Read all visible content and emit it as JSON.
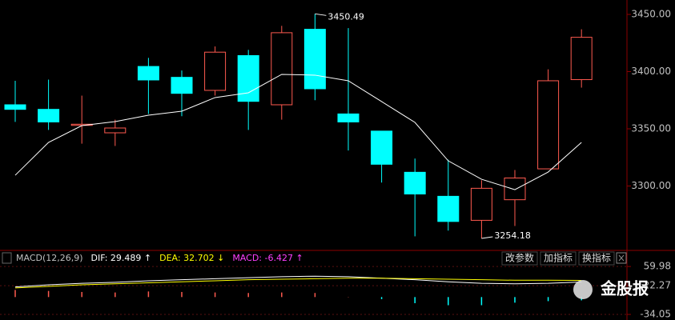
{
  "chart_data": [
    {
      "type": "candlestick",
      "open": [
        3371,
        3367,
        3353,
        3346.5,
        3404.5,
        3395,
        3383.6,
        3414,
        3371,
        3437,
        3363,
        3348,
        3312,
        3291,
        3270,
        3288,
        3315,
        3393
      ],
      "close": [
        3367,
        3356,
        3354,
        3350.7,
        3392.7,
        3381,
        3417,
        3374,
        3434,
        3385,
        3356,
        3319,
        3293,
        3269,
        3298,
        3307,
        3392,
        3430
      ],
      "high": [
        3392,
        3393,
        3379,
        3358,
        3412,
        3401,
        3422,
        3419,
        3440,
        3450.49,
        3438,
        3348,
        3324,
        3323,
        3305,
        3314,
        3402,
        3437
      ],
      "low": [
        3356,
        3349,
        3337,
        3335,
        3363,
        3361,
        3379,
        3349,
        3358,
        3375,
        3331,
        3303,
        3256,
        3261,
        3254.18,
        3265,
        3315,
        3386
      ],
      "up_color": "#ff5a4f",
      "down_color": "#00ffff",
      "ma": {
        "color": "#ffffff",
        "values": [
          3309.4,
          3338.1,
          3352.8,
          3356.3,
          3361.9,
          3365.4,
          3377.3,
          3381.5,
          3397.6,
          3396.9,
          3392,
          3373.8,
          3355.6,
          3322,
          3305.9,
          3296.8,
          3312.2,
          3338.1
        ]
      },
      "ylim": [
        3245.8,
        3462.6
      ],
      "yticks": [
        {
          "value": 3300,
          "label": "3300.00"
        },
        {
          "value": 3350,
          "label": "3350.00"
        },
        {
          "value": 3400,
          "label": "3400.00"
        },
        {
          "value": 3450,
          "label": "3450.00"
        }
      ]
    },
    {
      "type": "macd",
      "legend": [
        {
          "text": "MACD(12,26,9)",
          "color": "#c0c0c0"
        },
        {
          "text": "DIF: 29.489 ↑",
          "color": "#ffffff"
        },
        {
          "text": "DEA: 32.702 ↓",
          "color": "#ffff00"
        },
        {
          "text": "MACD: -6.427 ↑",
          "color": "#ff40ff"
        }
      ],
      "buttons": [
        "改参数",
        "加指标",
        "换指标"
      ],
      "series": [
        {
          "name": "DIF",
          "color": "#ffffff",
          "values": [
            20,
            24,
            27,
            29,
            32,
            34,
            36,
            38,
            40,
            41,
            40,
            37,
            34,
            30,
            27,
            26,
            27,
            29.489
          ]
        },
        {
          "name": "DEA",
          "color": "#ffff00",
          "values": [
            18,
            21,
            24,
            26,
            28,
            30,
            32,
            34,
            35,
            36,
            37,
            37,
            36,
            35,
            34,
            33,
            33,
            32.702
          ]
        }
      ],
      "histogram": {
        "up_color": "#ff5a4f",
        "down_color": "#00ffff",
        "values": [
          14,
          12,
          10,
          9,
          11,
          10,
          9,
          8,
          9,
          8,
          0.5,
          -4,
          -12,
          -16,
          -16,
          -11,
          -8,
          -6.427
        ]
      },
      "ylim": [
        -45,
        68
      ],
      "yticks": [
        59.98,
        22.27,
        -34.05
      ],
      "watermark": "金股报"
    }
  ]
}
